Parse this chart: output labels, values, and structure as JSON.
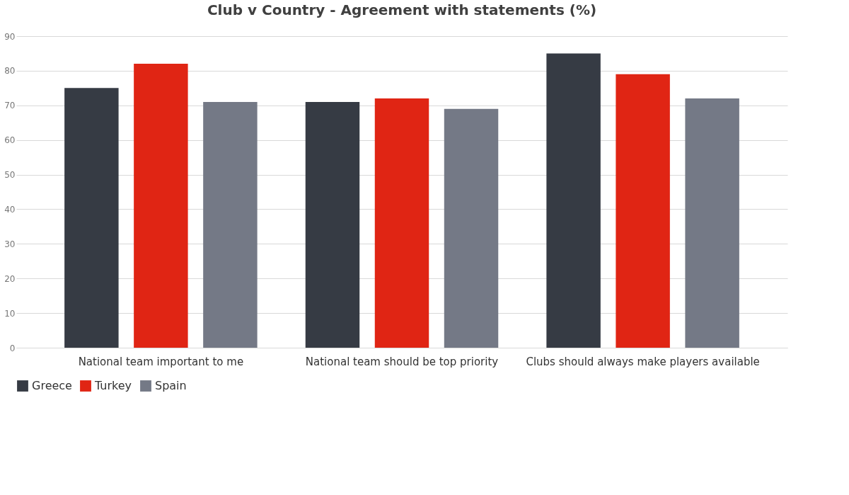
{
  "chart_data": {
    "type": "bar",
    "title": "Club v Country - Agreement with statements (%)",
    "categories": [
      "National team important to me",
      "National team should be top priority",
      "Clubs should always make players available"
    ],
    "series": [
      {
        "name": "Greece",
        "color": "#363b44",
        "values": [
          75,
          71,
          85
        ]
      },
      {
        "name": "Turkey",
        "color": "#e02514",
        "values": [
          82,
          72,
          79
        ]
      },
      {
        "name": "Spain",
        "color": "#747986",
        "values": [
          71,
          69,
          72
        ]
      }
    ],
    "ylim": [
      0,
      90
    ],
    "yticks": [
      0,
      10,
      20,
      30,
      40,
      50,
      60,
      70,
      80,
      90
    ],
    "grid": "y",
    "legend": "bottom"
  }
}
